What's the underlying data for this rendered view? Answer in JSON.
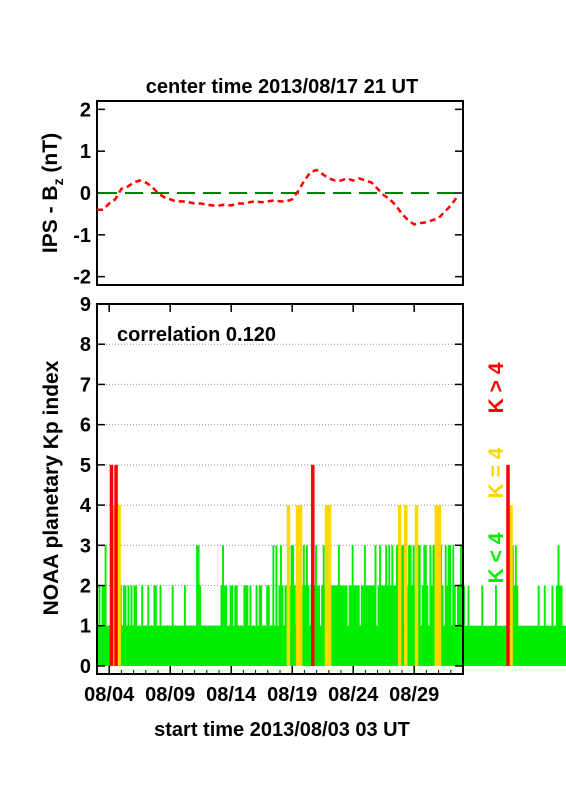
{
  "chart_data": [
    {
      "type": "line",
      "title": "center time 2013/08/17 21 UT",
      "ylabel_main": "IPS - B",
      "ylabel_sub": "z",
      "ylabel_unit": " (nT)",
      "ylim": [
        -2.2,
        2.2
      ],
      "yticks": [
        -2,
        -1,
        0,
        1,
        2
      ],
      "xlim": [
        0,
        30
      ],
      "grid": false,
      "zero_line_color": "#008000",
      "series": [
        {
          "color": "#ff0000",
          "style": "dashed",
          "x": [
            0.0,
            0.5,
            1.0,
            1.5,
            2.0,
            2.5,
            3.0,
            3.5,
            4.0,
            4.5,
            5.0,
            5.5,
            6.0,
            6.5,
            7.0,
            7.5,
            8.0,
            8.5,
            9.0,
            9.5,
            10.0,
            10.5,
            11.0,
            11.5,
            12.0,
            12.5,
            13.0,
            13.5,
            14.0,
            14.5,
            15.0,
            15.5,
            16.0,
            16.5,
            17.0,
            17.5,
            18.0,
            18.5,
            19.0,
            19.5,
            20.0,
            20.5,
            21.0,
            21.5,
            22.0,
            22.5,
            23.0,
            23.5,
            24.0,
            24.5,
            25.0,
            25.5,
            26.0,
            26.5,
            27.0,
            27.5,
            28.0,
            28.5,
            29.0,
            29.5
          ],
          "values": [
            -0.4,
            -0.4,
            -0.25,
            -0.15,
            0.1,
            0.15,
            0.25,
            0.3,
            0.25,
            0.15,
            0.0,
            -0.1,
            -0.15,
            -0.2,
            -0.2,
            -0.22,
            -0.25,
            -0.25,
            -0.28,
            -0.3,
            -0.3,
            -0.28,
            -0.3,
            -0.25,
            -0.25,
            -0.22,
            -0.2,
            -0.22,
            -0.2,
            -0.18,
            -0.2,
            -0.2,
            -0.15,
            0.05,
            0.3,
            0.5,
            0.55,
            0.45,
            0.35,
            0.3,
            0.3,
            0.35,
            0.3,
            0.35,
            0.3,
            0.25,
            0.1,
            -0.05,
            -0.15,
            -0.3,
            -0.5,
            -0.65,
            -0.75,
            -0.72,
            -0.7,
            -0.65,
            -0.6,
            -0.45,
            -0.3,
            -0.1
          ]
        }
      ]
    },
    {
      "type": "bar",
      "annotation": "correlation 0.120",
      "ylabel": "NOAA planetary Kp index",
      "xlabel": "start time 2013/08/03 03 UT",
      "ylim": [
        -0.2,
        9
      ],
      "yticks": [
        0,
        1,
        2,
        3,
        4,
        5,
        6,
        7,
        8,
        9
      ],
      "xlim": [
        0,
        30
      ],
      "xtick_labels": [
        "08/04",
        "08/09",
        "08/14",
        "08/19",
        "08/24",
        "08/29"
      ],
      "xtick_days": [
        1,
        6,
        11,
        16,
        21,
        26
      ],
      "grid": true,
      "legend_position": "right",
      "legend": [
        {
          "label": "K < 4",
          "color": "#00ee00"
        },
        {
          "label": "K = 4",
          "color": "#ffd700"
        },
        {
          "label": "K > 4",
          "color": "#ff0000"
        }
      ],
      "day_step": 0.125,
      "values": [
        1,
        2,
        1,
        2,
        2,
        3,
        1,
        1,
        1,
        5,
        4,
        3,
        5,
        3,
        4,
        2,
        1,
        2,
        2,
        1,
        2,
        1,
        2,
        1,
        2,
        2,
        1,
        1,
        1,
        2,
        1,
        1,
        1,
        2,
        1,
        1,
        1,
        2,
        2,
        1,
        1,
        2,
        1,
        1,
        1,
        1,
        1,
        1,
        1,
        2,
        1,
        1,
        1,
        1,
        1,
        1,
        1,
        2,
        1,
        1,
        1,
        1,
        1,
        1,
        1,
        3,
        3,
        2,
        1,
        1,
        1,
        1,
        1,
        1,
        1,
        1,
        1,
        1,
        1,
        1,
        1,
        2,
        3,
        2,
        2,
        1,
        1,
        2,
        2,
        1,
        2,
        2,
        1,
        1,
        1,
        1,
        2,
        2,
        2,
        1,
        2,
        1,
        1,
        1,
        2,
        1,
        2,
        2,
        1,
        1,
        1,
        2,
        2,
        1,
        1,
        3,
        1,
        3,
        1,
        2,
        3,
        2,
        1,
        2,
        2,
        4,
        2,
        3,
        3,
        2,
        1,
        4,
        3,
        4,
        2,
        3,
        2,
        3,
        2,
        1,
        2,
        5,
        2,
        3,
        2,
        2,
        1,
        2,
        3,
        2,
        4,
        2,
        4,
        2,
        2,
        2,
        2,
        2,
        3,
        2,
        2,
        2,
        2,
        2,
        1,
        2,
        2,
        3,
        2,
        2,
        2,
        2,
        1,
        2,
        2,
        3,
        2,
        2,
        2,
        2,
        2,
        2,
        3,
        1,
        2,
        3,
        2,
        2,
        2,
        3,
        2,
        3,
        2,
        3,
        2,
        2,
        3,
        3,
        4,
        3,
        3,
        1,
        4,
        2,
        3,
        3,
        2,
        3,
        2,
        4,
        3,
        3,
        1,
        2,
        3,
        3,
        2,
        1,
        3,
        2,
        3,
        3,
        4,
        1,
        4,
        3,
        2,
        1,
        3,
        2,
        3,
        3,
        1,
        3,
        2,
        1,
        2,
        2,
        3,
        2,
        2,
        1,
        1,
        2,
        1,
        1,
        1,
        1,
        1,
        1,
        1,
        1,
        2,
        1,
        1,
        1,
        1,
        1,
        1,
        1,
        1,
        2,
        1,
        1,
        1,
        1,
        1,
        1,
        1,
        5,
        3,
        4,
        3,
        2,
        3,
        2,
        1,
        1,
        1,
        1,
        1,
        1,
        1,
        1,
        1,
        1,
        1,
        1,
        1,
        2,
        1,
        1,
        1,
        2,
        1,
        1,
        1,
        1,
        2,
        1,
        1,
        2,
        3,
        2,
        2,
        1,
        1,
        1,
        1,
        3,
        2,
        1,
        2,
        4,
        4,
        3,
        3,
        2,
        2,
        2,
        2,
        2,
        2,
        2,
        1,
        3,
        2,
        3,
        3,
        2,
        3,
        2,
        2,
        3,
        2
      ]
    }
  ]
}
